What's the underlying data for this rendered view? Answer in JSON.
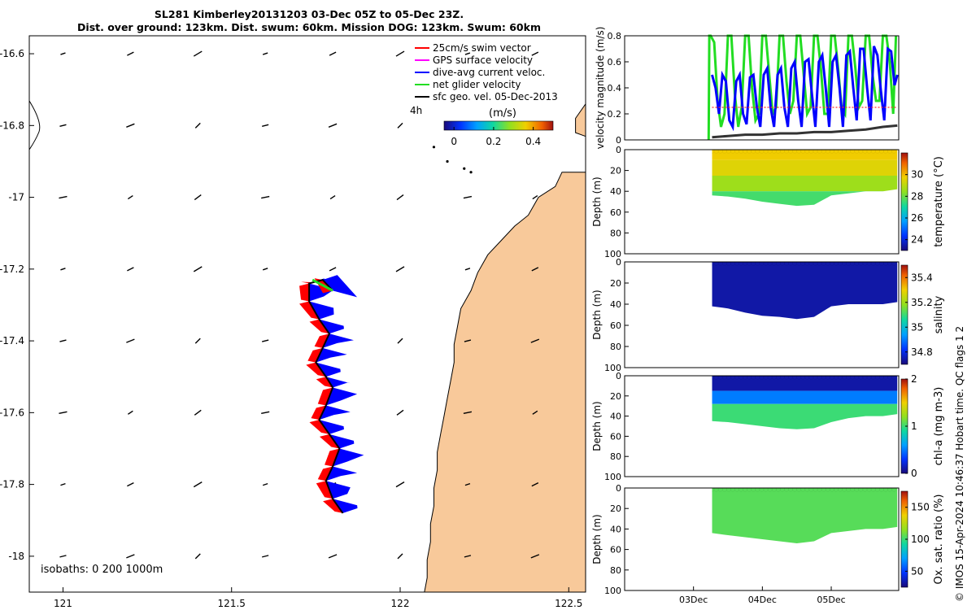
{
  "title_line1": "SL281 Kimberley20131203 03-Dec 05Z to 05-Dec 23Z.",
  "title_line2": "Dist. over ground: 123km. Dist. swum: 60km. Mission DOG: 123km. Swum: 60km",
  "credit": "© IMOS 15-Apr-2024 10:46:37 Hobart time. QC flags 1  2",
  "colors": {
    "land": "#f8c99a",
    "sea_vectors": "#000000",
    "dive_avg_fill": "#0000ff",
    "swim_fill": "#ff0000",
    "net_velocity": "#22dd22",
    "swim_speed_line": "#ff3030",
    "geo_vel_line": "#333333"
  },
  "chart_data": [
    {
      "type": "scatter",
      "name": "glider-track-map",
      "xlim": [
        120.9,
        122.55
      ],
      "ylim": [
        -18.1,
        -16.55
      ],
      "xticks": [
        "121",
        "121.5",
        "122",
        "122.5"
      ],
      "xtick_values": [
        121,
        121.5,
        122,
        122.5
      ],
      "yticks": [
        "-16.6",
        "-16.8",
        "-17",
        "-17.2",
        "-17.4",
        "-17.6",
        "-17.8",
        "-18"
      ],
      "ytick_values": [
        -16.6,
        -16.8,
        -17.0,
        -17.2,
        -17.4,
        -17.6,
        -17.8,
        -18.0
      ],
      "legend": [
        {
          "label": "25cm/s swim vector",
          "color": "#ff0000"
        },
        {
          "label": "GPS surface velocity",
          "color": "#ff00ff"
        },
        {
          "label": "dive-avg current veloc.",
          "color": "#0000ff"
        },
        {
          "label": "net glider velocity",
          "color": "#22dd22"
        },
        {
          "label": "sfc geo. vel. 05-Dec-2013",
          "color": "#000000"
        }
      ],
      "legend_extra": "4h",
      "colorbar": {
        "label": "(m/s)",
        "ticks": [
          "0",
          "0.2",
          "0.4"
        ],
        "tick_values": [
          0,
          0.2,
          0.4
        ],
        "range": [
          -0.05,
          0.5
        ]
      },
      "isobaths_label": "isobaths: 0   200  1000m",
      "track": [
        [
          121.83,
          -17.88
        ],
        [
          121.8,
          -17.84
        ],
        [
          121.78,
          -17.79
        ],
        [
          121.8,
          -17.75
        ],
        [
          121.82,
          -17.7
        ],
        [
          121.79,
          -17.66
        ],
        [
          121.76,
          -17.62
        ],
        [
          121.78,
          -17.58
        ],
        [
          121.8,
          -17.53
        ],
        [
          121.78,
          -17.5
        ],
        [
          121.75,
          -17.46
        ],
        [
          121.77,
          -17.42
        ],
        [
          121.79,
          -17.38
        ],
        [
          121.76,
          -17.34
        ],
        [
          121.73,
          -17.29
        ],
        [
          121.73,
          -17.24
        ],
        [
          121.77,
          -17.23
        ],
        [
          121.8,
          -17.26
        ]
      ],
      "net_velocity_segment": [
        [
          121.74,
          -17.23
        ],
        [
          121.8,
          -17.26
        ]
      ]
    },
    {
      "type": "line",
      "name": "velocity-magnitude",
      "ylabel": "velocity magnitude (m/s)",
      "xlim": [
        2.0,
        5.98
      ],
      "ylim": [
        0,
        0.8
      ],
      "yticks": [
        "0",
        "0.2",
        "0.4",
        "0.6",
        "0.8"
      ],
      "ytick_values": [
        0,
        0.2,
        0.4,
        0.6,
        0.8
      ],
      "series": [
        {
          "color": "#22dd22",
          "x": [
            3.22,
            3.23,
            3.25,
            3.3,
            3.35,
            3.4,
            3.45,
            3.5,
            3.55,
            3.6,
            3.65,
            3.7,
            3.75,
            3.8,
            3.85,
            3.9,
            3.95,
            4.0,
            4.05,
            4.1,
            4.15,
            4.2,
            4.25,
            4.3,
            4.35,
            4.4,
            4.45,
            4.5,
            4.55,
            4.6,
            4.65,
            4.7,
            4.75,
            4.8,
            4.85,
            4.9,
            4.95,
            5.0,
            5.05,
            5.1,
            5.15,
            5.2,
            5.25,
            5.3,
            5.35,
            5.4,
            5.45,
            5.5,
            5.55,
            5.6,
            5.65,
            5.7,
            5.75,
            5.8,
            5.85,
            5.9,
            5.94
          ],
          "y": [
            0.0,
            0.8,
            0.8,
            0.75,
            0.3,
            0.1,
            0.2,
            0.8,
            0.8,
            0.35,
            0.1,
            0.25,
            0.8,
            0.8,
            0.4,
            0.15,
            0.2,
            0.8,
            0.8,
            0.5,
            0.2,
            0.25,
            0.8,
            0.8,
            0.45,
            0.2,
            0.3,
            0.8,
            0.8,
            0.5,
            0.2,
            0.25,
            0.8,
            0.8,
            0.55,
            0.2,
            0.2,
            0.8,
            0.8,
            0.55,
            0.25,
            0.2,
            0.8,
            0.8,
            0.55,
            0.25,
            0.3,
            0.8,
            0.8,
            0.5,
            0.3,
            0.3,
            0.8,
            0.8,
            0.6,
            0.2,
            0.8
          ]
        },
        {
          "color": "#0000ff",
          "x": [
            3.27,
            3.32,
            3.37,
            3.42,
            3.47,
            3.52,
            3.57,
            3.62,
            3.67,
            3.72,
            3.77,
            3.82,
            3.87,
            3.92,
            3.97,
            4.02,
            4.07,
            4.12,
            4.17,
            4.22,
            4.27,
            4.32,
            4.37,
            4.42,
            4.47,
            4.52,
            4.57,
            4.62,
            4.67,
            4.72,
            4.77,
            4.82,
            4.87,
            4.92,
            4.97,
            5.02,
            5.07,
            5.12,
            5.17,
            5.22,
            5.27,
            5.32,
            5.37,
            5.42,
            5.47,
            5.52,
            5.57,
            5.62,
            5.67,
            5.72,
            5.77,
            5.82,
            5.87,
            5.92,
            5.96
          ],
          "y": [
            0.5,
            0.4,
            0.2,
            0.5,
            0.45,
            0.15,
            0.1,
            0.45,
            0.5,
            0.2,
            0.12,
            0.48,
            0.5,
            0.25,
            0.1,
            0.5,
            0.55,
            0.25,
            0.1,
            0.5,
            0.55,
            0.25,
            0.1,
            0.55,
            0.6,
            0.3,
            0.1,
            0.6,
            0.62,
            0.35,
            0.1,
            0.6,
            0.65,
            0.4,
            0.1,
            0.6,
            0.65,
            0.4,
            0.1,
            0.65,
            0.68,
            0.4,
            0.15,
            0.7,
            0.7,
            0.4,
            0.15,
            0.72,
            0.65,
            0.38,
            0.15,
            0.7,
            0.68,
            0.42,
            0.5
          ]
        },
        {
          "color": "#ff3030",
          "dashed": true,
          "x": [
            3.27,
            5.96
          ],
          "y": [
            0.25,
            0.25
          ]
        },
        {
          "color": "#333333",
          "x": [
            3.27,
            3.5,
            3.75,
            4.0,
            4.25,
            4.5,
            4.75,
            5.0,
            5.25,
            5.5,
            5.75,
            5.96
          ],
          "y": [
            0.02,
            0.03,
            0.04,
            0.04,
            0.05,
            0.05,
            0.06,
            0.06,
            0.07,
            0.08,
            0.1,
            0.11
          ]
        }
      ]
    },
    {
      "type": "heatmap",
      "name": "temperature-section",
      "ylabel": "Depth (m)",
      "cbar_label": "temperature (°C)",
      "cbar_ticks": [
        "24",
        "26",
        "28",
        "30"
      ],
      "cbar_tick_values": [
        24,
        26,
        28,
        30
      ],
      "cbar_range": [
        23,
        32
      ],
      "ylim": [
        100,
        0
      ],
      "yticks": [
        "0",
        "20",
        "40",
        "60",
        "80",
        "100"
      ],
      "ytick_values": [
        0,
        20,
        40,
        60,
        80,
        100
      ],
      "xlim": [
        2.0,
        5.98
      ],
      "x_range": [
        3.27,
        5.96
      ],
      "bottom_profile": [
        [
          3.27,
          44
        ],
        [
          3.5,
          45
        ],
        [
          3.75,
          47
        ],
        [
          4.0,
          50
        ],
        [
          4.25,
          52
        ],
        [
          4.5,
          54
        ],
        [
          4.75,
          53
        ],
        [
          5.0,
          44
        ],
        [
          5.25,
          42
        ],
        [
          5.5,
          40
        ],
        [
          5.75,
          40
        ],
        [
          5.96,
          38
        ]
      ],
      "layers": [
        {
          "depth": [
            0,
            10
          ],
          "value": 29.8
        },
        {
          "depth": [
            10,
            25
          ],
          "value": 29.5
        },
        {
          "depth": [
            25,
            40
          ],
          "value": 28.6
        },
        {
          "depth": [
            40,
            60
          ],
          "value": 27.6
        }
      ]
    },
    {
      "type": "heatmap",
      "name": "salinity-section",
      "ylabel": "Depth (m)",
      "cbar_label": "salinity",
      "cbar_ticks": [
        "34.8",
        "35",
        "35.2",
        "35.4"
      ],
      "cbar_tick_values": [
        34.8,
        35.0,
        35.2,
        35.4
      ],
      "cbar_range": [
        34.7,
        35.5
      ],
      "ylim": [
        100,
        0
      ],
      "yticks": [
        "0",
        "20",
        "40",
        "60",
        "80",
        "100"
      ],
      "ytick_values": [
        0,
        20,
        40,
        60,
        80,
        100
      ],
      "xlim": [
        2.0,
        5.98
      ],
      "x_range": [
        3.27,
        5.96
      ],
      "bottom_profile": [
        [
          3.27,
          42
        ],
        [
          3.5,
          44
        ],
        [
          3.75,
          48
        ],
        [
          4.0,
          51
        ],
        [
          4.25,
          52
        ],
        [
          4.5,
          54
        ],
        [
          4.75,
          52
        ],
        [
          5.0,
          42
        ],
        [
          5.25,
          40
        ],
        [
          5.5,
          40
        ],
        [
          5.75,
          40
        ],
        [
          5.96,
          38
        ]
      ],
      "layers": [
        {
          "depth": [
            0,
            60
          ],
          "value": 34.74
        }
      ]
    },
    {
      "type": "heatmap",
      "name": "chlorophyll-section",
      "ylabel": "Depth (m)",
      "cbar_label": "chl-a (mg m-3)",
      "cbar_ticks": [
        "0",
        "1",
        "2"
      ],
      "cbar_tick_values": [
        0,
        1,
        2
      ],
      "cbar_range": [
        0,
        2
      ],
      "ylim": [
        100,
        0
      ],
      "yticks": [
        "0",
        "20",
        "40",
        "60",
        "80",
        "100"
      ],
      "ytick_values": [
        0,
        20,
        40,
        60,
        80,
        100
      ],
      "xlim": [
        2.0,
        5.98
      ],
      "x_range": [
        3.27,
        5.96
      ],
      "bottom_profile": [
        [
          3.27,
          45
        ],
        [
          3.5,
          46
        ],
        [
          3.75,
          48
        ],
        [
          4.0,
          50
        ],
        [
          4.25,
          52
        ],
        [
          4.5,
          53
        ],
        [
          4.75,
          52
        ],
        [
          5.0,
          46
        ],
        [
          5.25,
          42
        ],
        [
          5.5,
          40
        ],
        [
          5.75,
          40
        ],
        [
          5.96,
          38
        ]
      ],
      "layers": [
        {
          "depth": [
            0,
            15
          ],
          "value": 0.1
        },
        {
          "depth": [
            15,
            28
          ],
          "value": 0.5
        },
        {
          "depth": [
            28,
            60
          ],
          "value": 1.0
        }
      ]
    },
    {
      "type": "heatmap",
      "name": "oxygen-saturation-section",
      "ylabel": "Depth (m)",
      "cbar_label": "Ox. sat. ratio (%)",
      "cbar_ticks": [
        "50",
        "100",
        "150"
      ],
      "cbar_tick_values": [
        50,
        100,
        150
      ],
      "cbar_range": [
        25,
        175
      ],
      "ylim": [
        100,
        0
      ],
      "yticks": [
        "0",
        "20",
        "40",
        "60",
        "80",
        "100"
      ],
      "ytick_values": [
        0,
        20,
        40,
        60,
        80,
        100
      ],
      "xlim": [
        2.0,
        5.98
      ],
      "x_range": [
        3.27,
        5.96
      ],
      "xticks": [
        "03Dec",
        "04Dec",
        "05Dec"
      ],
      "xtick_values": [
        3,
        4,
        5
      ],
      "bottom_profile": [
        [
          3.27,
          44
        ],
        [
          3.5,
          46
        ],
        [
          3.75,
          48
        ],
        [
          4.0,
          50
        ],
        [
          4.25,
          52
        ],
        [
          4.5,
          54
        ],
        [
          4.75,
          52
        ],
        [
          5.0,
          44
        ],
        [
          5.25,
          42
        ],
        [
          5.5,
          40
        ],
        [
          5.75,
          40
        ],
        [
          5.96,
          38
        ]
      ],
      "layers": [
        {
          "depth": [
            0,
            60
          ],
          "value": 105
        }
      ]
    }
  ]
}
